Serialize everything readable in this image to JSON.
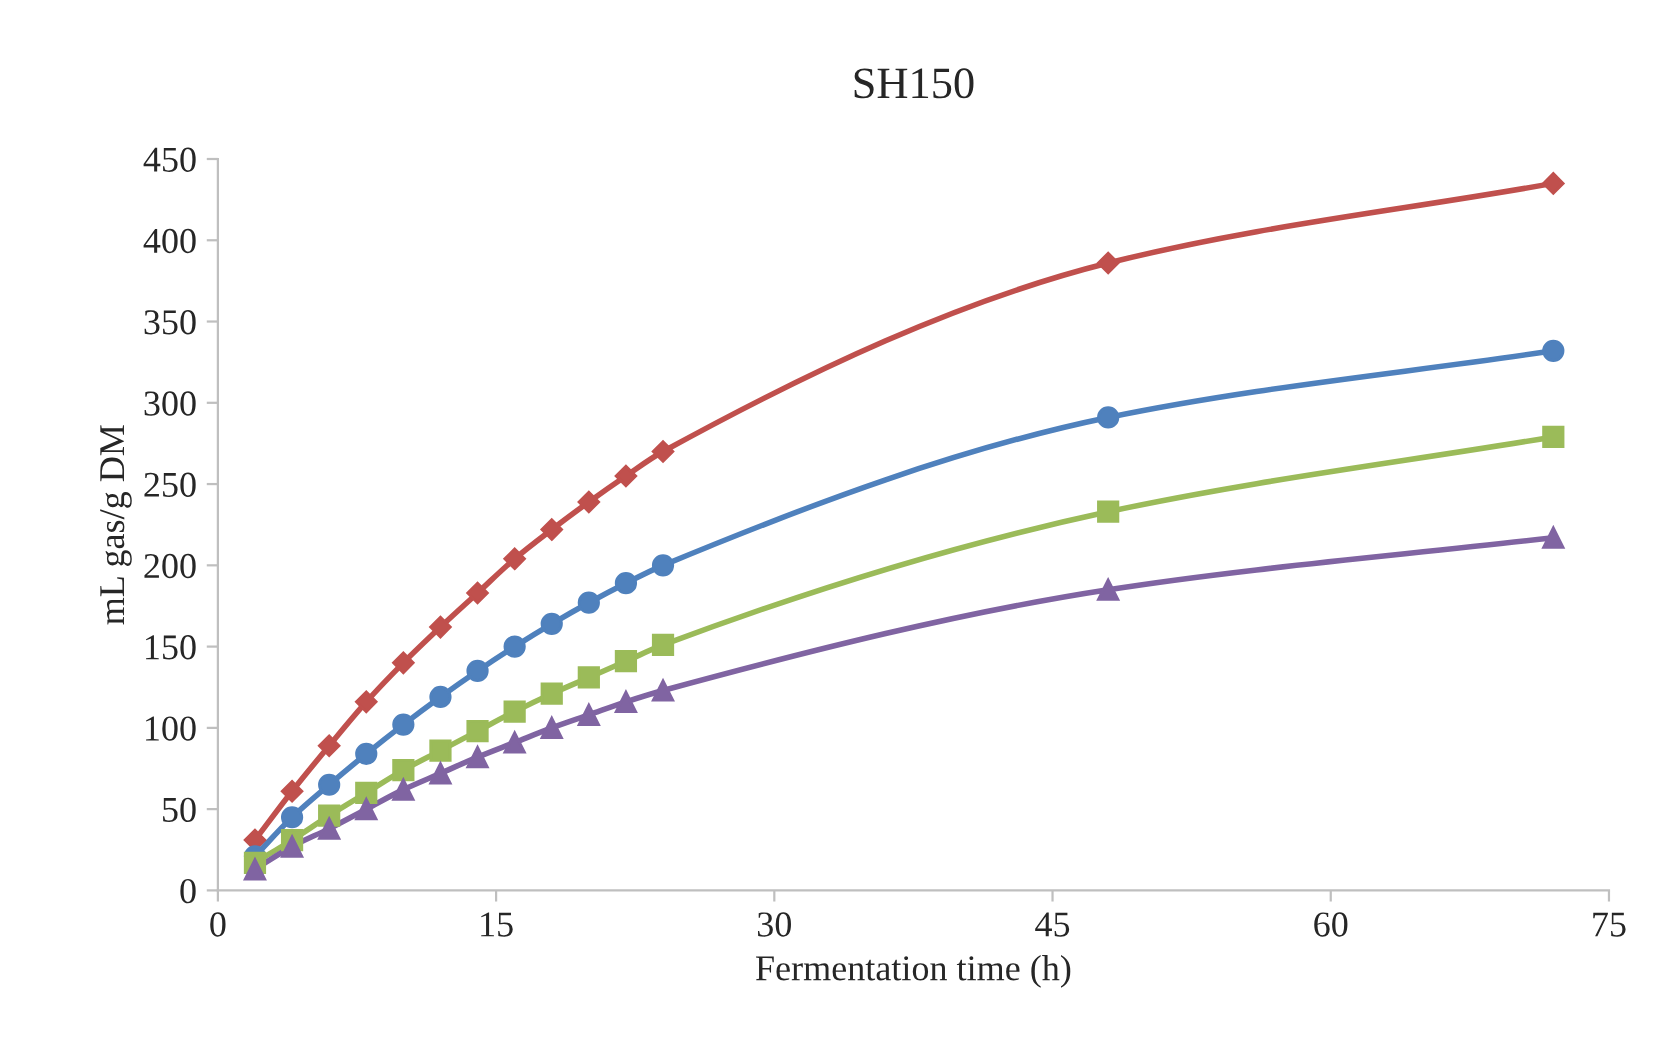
{
  "chart_data": {
    "type": "line",
    "title": "SH150",
    "xlabel": "Fermentation time (h)",
    "ylabel": "mL gas/g DM",
    "x": [
      2,
      4,
      6,
      8,
      10,
      12,
      14,
      16,
      18,
      20,
      22,
      24,
      48,
      72
    ],
    "series": [
      {
        "color": "#c0504d",
        "marker": "diamond",
        "values": [
          31,
          61,
          89,
          116,
          140,
          162,
          183,
          204,
          222,
          239,
          255,
          270,
          386,
          435
        ]
      },
      {
        "color": "#4f81bd",
        "marker": "circle",
        "values": [
          21,
          45,
          65,
          84,
          102,
          119,
          135,
          150,
          164,
          177,
          189,
          200,
          291,
          332
        ]
      },
      {
        "color": "#9bbb59",
        "marker": "square",
        "values": [
          17,
          31,
          46,
          60,
          74,
          86,
          98,
          110,
          121,
          131,
          141,
          151,
          233,
          279
        ]
      },
      {
        "color": "#8064a2",
        "marker": "triangle",
        "values": [
          13,
          27,
          38,
          50,
          62,
          72,
          82,
          91,
          100,
          108,
          116,
          123,
          185,
          217
        ]
      }
    ],
    "xlim": [
      0,
      75
    ],
    "xticks": [
      0,
      15,
      30,
      45,
      60,
      75
    ],
    "ylim": [
      0,
      450
    ],
    "yticks": [
      0,
      50,
      100,
      150,
      200,
      250,
      300,
      350,
      400,
      450
    ],
    "grid": false,
    "legend": false,
    "line_style": "solid"
  }
}
